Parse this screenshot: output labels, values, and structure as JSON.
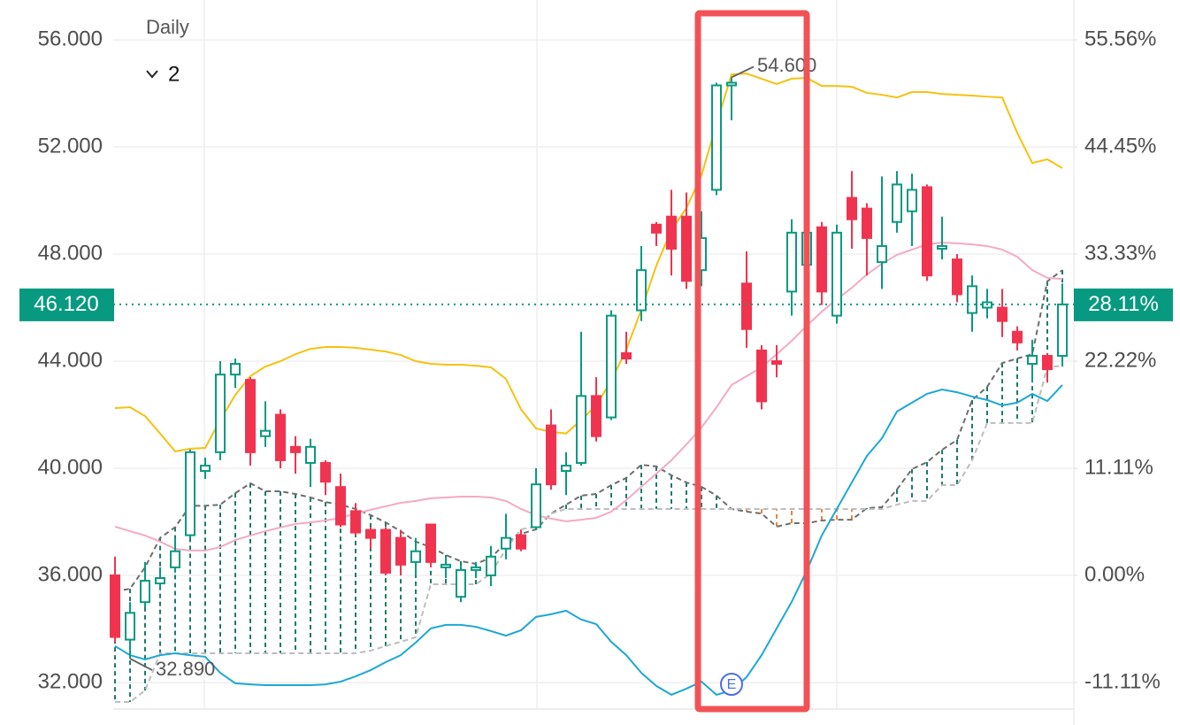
{
  "chart_data": {
    "type": "candlestick",
    "interval": "Daily",
    "collapsed_indicators": 2,
    "ylim": [
      31.04,
      57.49
    ],
    "yticks": [
      {
        "value": 56,
        "label": "56.000"
      },
      {
        "value": 52,
        "label": "52.000"
      },
      {
        "value": 48,
        "label": "48.000"
      },
      {
        "value": 44,
        "label": "44.000"
      },
      {
        "value": 40,
        "label": "40.000"
      },
      {
        "value": 36,
        "label": "36.000"
      },
      {
        "value": 32,
        "label": "32.000"
      }
    ],
    "y2lim": [
      -13.77,
      59.69
    ],
    "y2ticks": [
      {
        "value": 55.56,
        "label": "55.56%"
      },
      {
        "value": 44.45,
        "label": "44.45%"
      },
      {
        "value": 33.33,
        "label": "33.33%"
      },
      {
        "value": 22.22,
        "label": "22.22%"
      },
      {
        "value": 11.11,
        "label": "11.11%"
      },
      {
        "value": 0,
        "label": "0.00%"
      },
      {
        "value": -11.11,
        "label": "-11.11%"
      }
    ],
    "grid": true,
    "up_color": "#089981",
    "down_color": "#f0344f",
    "open": [
      36.0,
      33.6,
      35.0,
      35.7,
      36.3,
      37.5,
      39.9,
      40.6,
      43.5,
      43.3,
      41.2,
      42.0,
      40.8,
      40.2,
      40.2,
      39.3,
      38.4,
      37.7,
      37.7,
      37.4,
      36.5,
      37.9,
      36.3,
      35.2,
      36.2,
      36.0,
      37.0,
      37.5,
      37.8,
      41.6,
      39.9,
      40.2,
      42.7,
      41.9,
      44.3,
      45.9,
      49.1,
      49.4,
      49.4,
      47.4,
      50.4,
      54.3,
      46.9,
      44.4,
      44.0,
      46.6,
      47.6,
      49.0,
      45.7,
      50.1,
      49.7,
      47.7,
      49.2,
      49.6,
      50.5,
      48.2,
      47.8,
      45.8,
      46.0,
      46.0,
      45.1,
      43.9,
      44.2,
      44.2
    ],
    "high": [
      36.7,
      35.0,
      36.5,
      36.3,
      37.4,
      40.7,
      40.4,
      44.0,
      44.1,
      43.4,
      42.5,
      42.2,
      41.2,
      41.1,
      40.3,
      39.8,
      38.7,
      37.8,
      37.8,
      37.7,
      37.4,
      37.9,
      36.7,
      36.4,
      36.5,
      37.1,
      38.3,
      37.7,
      40.0,
      42.2,
      40.6,
      45.1,
      43.4,
      45.9,
      45.1,
      48.3,
      49.2,
      50.4,
      50.3,
      49.6,
      54.4,
      54.6,
      48.1,
      44.6,
      44.6,
      49.3,
      49.1,
      49.2,
      49.1,
      51.1,
      49.9,
      50.9,
      51.1,
      51.0,
      50.6,
      49.4,
      48.0,
      47.2,
      46.7,
      46.7,
      45.3,
      44.8,
      44.3,
      46.9
    ],
    "low": [
      33.5,
      32.89,
      34.8,
      35.5,
      36.1,
      37.4,
      39.6,
      40.3,
      43.0,
      40.1,
      40.8,
      40.0,
      39.8,
      39.3,
      39.0,
      37.8,
      37.5,
      37.0,
      36.0,
      36.0,
      36.0,
      36.3,
      35.9,
      35.0,
      35.9,
      35.6,
      36.6,
      36.9,
      37.7,
      39.2,
      39.0,
      40.1,
      41.0,
      41.8,
      43.9,
      45.5,
      48.3,
      47.2,
      46.7,
      46.8,
      50.2,
      53.0,
      44.5,
      42.2,
      43.4,
      45.7,
      46.7,
      46.1,
      45.4,
      48.2,
      47.2,
      46.7,
      48.8,
      48.3,
      47.0,
      47.8,
      46.2,
      45.1,
      45.6,
      44.9,
      44.4,
      43.2,
      43.2,
      43.8
    ],
    "close": [
      33.7,
      34.6,
      35.8,
      35.9,
      36.9,
      40.6,
      40.1,
      43.5,
      43.9,
      40.6,
      41.4,
      40.3,
      40.6,
      40.8,
      39.5,
      37.9,
      37.6,
      37.4,
      36.1,
      36.4,
      36.9,
      36.5,
      36.4,
      36.2,
      36.3,
      36.7,
      37.4,
      37.0,
      39.4,
      39.4,
      40.1,
      42.7,
      41.2,
      45.7,
      44.1,
      47.4,
      48.8,
      48.2,
      47.0,
      48.6,
      54.3,
      54.4,
      45.2,
      42.5,
      43.9,
      48.8,
      48.8,
      46.6,
      48.8,
      49.3,
      48.6,
      48.3,
      50.6,
      50.4,
      47.2,
      48.3,
      46.5,
      46.8,
      46.2,
      45.5,
      44.7,
      44.2,
      43.7,
      46.12
    ],
    "overlays": [
      {
        "color": "#f5c211",
        "values": [
          42.25,
          42.28,
          41.95,
          41.3,
          40.63,
          40.73,
          40.76,
          41.8,
          42.74,
          43.44,
          43.8,
          44.0,
          44.26,
          44.46,
          44.53,
          44.53,
          44.5,
          44.43,
          44.36,
          44.23,
          44.0,
          43.9,
          43.87,
          43.87,
          43.83,
          43.77,
          43.34,
          42.2,
          41.49,
          41.36,
          41.3,
          41.8,
          42.35,
          43.27,
          44.43,
          45.92,
          47.57,
          48.9,
          49.72,
          50.94,
          52.86,
          54.71,
          54.74,
          54.55,
          54.35,
          54.55,
          54.58,
          54.28,
          54.28,
          54.25,
          54.02,
          53.95,
          53.85,
          54.05,
          54.05,
          53.98,
          53.95,
          53.92,
          53.88,
          53.85,
          52.53,
          51.4,
          51.54,
          51.21
        ]
      },
      {
        "color": "#f5a9c4",
        "values": [
          37.82,
          37.65,
          37.49,
          37.26,
          36.99,
          36.93,
          36.93,
          37.06,
          37.32,
          37.49,
          37.65,
          37.79,
          37.92,
          37.98,
          38.05,
          38.15,
          38.31,
          38.45,
          38.58,
          38.71,
          38.78,
          38.88,
          38.91,
          38.94,
          38.94,
          38.91,
          38.78,
          38.48,
          38.25,
          38.12,
          38.02,
          38.08,
          38.15,
          38.38,
          38.81,
          39.31,
          39.8,
          40.3,
          40.89,
          41.52,
          42.28,
          43.11,
          43.44,
          43.77,
          44.26,
          44.76,
          45.32,
          45.85,
          46.31,
          46.74,
          47.24,
          47.64,
          47.97,
          48.17,
          48.36,
          48.43,
          48.4,
          48.36,
          48.3,
          48.17,
          47.9,
          47.4,
          47.11,
          47.07
        ]
      },
      {
        "color": "#1ea7d6",
        "values": [
          33.36,
          33.02,
          32.86,
          33.02,
          33.09,
          33.02,
          32.96,
          32.36,
          31.97,
          31.93,
          31.9,
          31.9,
          31.9,
          31.9,
          31.93,
          32.03,
          32.23,
          32.46,
          32.76,
          33.02,
          33.49,
          34.02,
          34.15,
          34.15,
          34.08,
          33.92,
          33.75,
          33.95,
          34.45,
          34.55,
          34.68,
          34.35,
          34.18,
          33.52,
          33.02,
          32.36,
          31.87,
          31.54,
          31.77,
          32.03,
          31.54,
          31.7,
          32.2,
          33.02,
          34.02,
          35.01,
          36.17,
          37.49,
          38.48,
          39.47,
          40.46,
          41.12,
          42.12,
          42.45,
          42.78,
          42.94,
          42.84,
          42.68,
          42.55,
          42.35,
          42.45,
          42.78,
          42.51,
          43.11
        ]
      }
    ],
    "cloud": {
      "up_color": "#1b7a6b",
      "down_color": "#e8833a",
      "span_a": {
        "color": "#6e6e6e",
        "values": [
          35.4,
          35.5,
          36.3,
          37.4,
          37.8,
          38.6,
          38.6,
          38.64,
          39.07,
          39.44,
          39.14,
          39.14,
          39.04,
          38.91,
          38.74,
          38.64,
          38.48,
          38.25,
          37.98,
          37.65,
          37.26,
          37.06,
          36.76,
          36.53,
          36.43,
          36.66,
          37.22,
          37.55,
          37.72,
          38.31,
          38.64,
          38.98,
          39.04,
          39.37,
          39.64,
          40.13,
          40.07,
          39.74,
          39.47,
          39.31,
          38.98,
          38.48,
          38.38,
          38.31,
          37.82,
          37.95,
          37.95,
          38.05,
          38.08,
          38.08,
          38.51,
          38.55,
          39.21,
          39.97,
          40.23,
          40.69,
          41.06,
          42.55,
          43.04,
          43.93,
          44.1,
          44.26,
          46.98,
          47.4
        ]
      },
      "span_b": {
        "color": "#bdbdbd",
        "values": [
          31.27,
          31.27,
          31.7,
          33.09,
          33.09,
          33.09,
          33.09,
          33.09,
          33.09,
          33.09,
          33.09,
          33.09,
          33.09,
          33.09,
          33.09,
          33.09,
          33.09,
          33.19,
          33.36,
          33.52,
          33.69,
          35.67,
          35.67,
          35.67,
          35.67,
          36.07,
          36.99,
          37.72,
          37.82,
          38.31,
          38.48,
          38.48,
          38.48,
          38.48,
          38.48,
          38.48,
          38.48,
          38.48,
          38.48,
          38.48,
          38.48,
          38.48,
          38.48,
          38.48,
          38.48,
          38.48,
          38.48,
          38.48,
          38.48,
          38.48,
          38.48,
          38.48,
          38.64,
          38.78,
          38.78,
          39.37,
          39.37,
          40.3,
          41.69,
          41.69,
          41.69,
          41.69,
          43.77,
          43.83
        ]
      }
    },
    "last_price": {
      "value": 46.12,
      "label": "46.120",
      "change_label": "28.11%"
    },
    "extremes": [
      {
        "value": 54.6,
        "label": "54.600"
      },
      {
        "value": 32.89,
        "label": "32.890"
      }
    ],
    "event_marker": "E"
  }
}
